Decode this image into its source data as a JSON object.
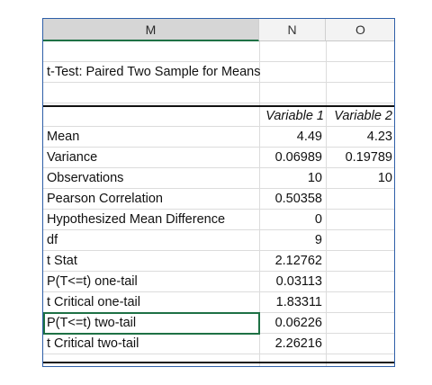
{
  "columns": [
    "M",
    "N",
    "O"
  ],
  "title": "t-Test: Paired Two Sample for Means",
  "headers": [
    "Variable 1",
    "Variable 2"
  ],
  "rows": [
    {
      "label": "Mean",
      "v1": "4.49",
      "v2": "4.23"
    },
    {
      "label": "Variance",
      "v1": "0.06989",
      "v2": "0.19789"
    },
    {
      "label": "Observations",
      "v1": "10",
      "v2": "10"
    },
    {
      "label": "Pearson Correlation",
      "v1": "0.50358",
      "v2": ""
    },
    {
      "label": "Hypothesized Mean Difference",
      "v1": "0",
      "v2": ""
    },
    {
      "label": "df",
      "v1": "9",
      "v2": ""
    },
    {
      "label": "t Stat",
      "v1": "2.12762",
      "v2": ""
    },
    {
      "label": "P(T<=t) one-tail",
      "v1": "0.03113",
      "v2": ""
    },
    {
      "label": "t Critical one-tail",
      "v1": "1.83311",
      "v2": ""
    },
    {
      "label": "P(T<=t) two-tail",
      "v1": "0.06226",
      "v2": ""
    },
    {
      "label": "t Critical two-tail",
      "v1": "2.26216",
      "v2": ""
    }
  ]
}
